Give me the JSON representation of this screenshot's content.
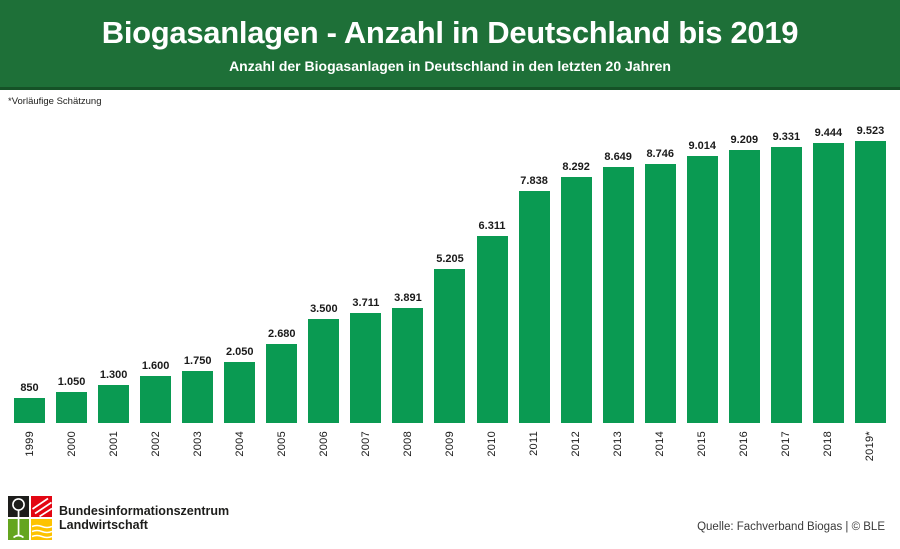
{
  "header": {
    "title": "Biogasanlagen - Anzahl in Deutschland bis 2019",
    "subtitle": "Anzahl der Biogasanlagen in Deutschland in den letzten 20 Jahren",
    "background_color": "#1e7038",
    "text_color": "#ffffff"
  },
  "footnote": "*Vorläufige Schätzung",
  "chart_data": {
    "type": "bar",
    "title": "Biogasanlagen - Anzahl in Deutschland bis 2019",
    "subtitle": "Anzahl der Biogasanlagen in Deutschland in den letzten 20 Jahren",
    "categories": [
      "1999",
      "2000",
      "2001",
      "2002",
      "2003",
      "2004",
      "2005",
      "2006",
      "2007",
      "2008",
      "2009",
      "2010",
      "2011",
      "2012",
      "2013",
      "2014",
      "2015",
      "2016",
      "2017",
      "2018",
      "2019*"
    ],
    "values": [
      850,
      1050,
      1300,
      1600,
      1750,
      2050,
      2680,
      3500,
      3711,
      3891,
      5205,
      6311,
      7838,
      8292,
      8649,
      8746,
      9014,
      9209,
      9331,
      9444,
      9523
    ],
    "value_labels": [
      "850",
      "1.050",
      "1.300",
      "1.600",
      "1.750",
      "2.050",
      "2.680",
      "3.500",
      "3.711",
      "3.891",
      "5.205",
      "6.311",
      "7.838",
      "8.292",
      "8.649",
      "8.746",
      "9.014",
      "9.209",
      "9.331",
      "9.444",
      "9.523"
    ],
    "xlabel": "",
    "ylabel": "",
    "ylim": [
      0,
      9523
    ],
    "grid": false,
    "legend": false,
    "bar_color": "#0a9a52",
    "value_label_position": "above-bars",
    "x_tick_rotation": -90,
    "footnote_marker": "* = Vorläufige Schätzung"
  },
  "footer": {
    "org_line1": "Bundesinformationszentrum",
    "org_line2": "Landwirtschaft",
    "source": "Quelle: Fachverband Biogas | © BLE",
    "logo_colors": {
      "top_left": "#1d1d1b",
      "top_right": "#e30613",
      "bottom_left": "#64a51f",
      "bottom_right": "#fdc300"
    }
  }
}
